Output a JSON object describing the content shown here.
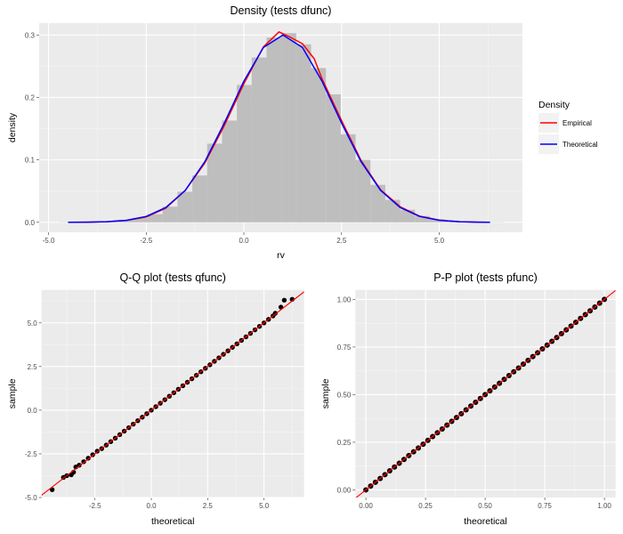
{
  "colors": {
    "panel": "#ebebeb",
    "grid": "#ffffff",
    "histogram": "#bebebe",
    "empirical": "#ff0000",
    "theoretical": "#0000ff",
    "points": "#000000",
    "reference_line": "#ff0000"
  },
  "chart_data": [
    {
      "type": "bar",
      "title": "Density (tests dfunc)",
      "xlabel": "rv",
      "ylabel": "density",
      "xlim": [
        -5.24,
        7.13
      ],
      "ylim": [
        -0.016,
        0.319
      ],
      "xticks": [
        "-5.0",
        "-2.5",
        "0.0",
        "2.5",
        "5.0"
      ],
      "xtick_values": [
        -5,
        -2.5,
        0,
        2.5,
        5
      ],
      "yticks": [
        "0.0",
        "0.1",
        "0.2",
        "0.3"
      ],
      "ytick_values": [
        0,
        0.1,
        0.2,
        0.3
      ],
      "grid": true,
      "histogram": {
        "bin_edges": [
          -4.74,
          -4.36,
          -3.98,
          -3.6,
          -3.22,
          -2.84,
          -2.46,
          -2.08,
          -1.7,
          -1.32,
          -0.94,
          -0.56,
          -0.18,
          0.2,
          0.58,
          0.96,
          1.34,
          1.72,
          2.1,
          2.48,
          2.86,
          3.24,
          3.62,
          4.0,
          4.38,
          4.76,
          5.14,
          5.52,
          5.9,
          6.28,
          6.66
        ],
        "density": [
          0.0003,
          0.0005,
          0.001,
          0.002,
          0.004,
          0.007,
          0.013,
          0.025,
          0.049,
          0.075,
          0.126,
          0.163,
          0.22,
          0.264,
          0.296,
          0.303,
          0.285,
          0.247,
          0.205,
          0.141,
          0.1,
          0.06,
          0.036,
          0.02,
          0.01,
          0.005,
          0.003,
          0.001,
          0.0007,
          0.0003
        ]
      },
      "legend": {
        "title": "Density",
        "position": "right"
      },
      "series": [
        {
          "name": "Empirical",
          "x": [
            -4.5,
            -4,
            -3.5,
            -3,
            -2.5,
            -2,
            -1.5,
            -1,
            -0.5,
            0,
            0.5,
            0.9,
            1.2,
            1.5,
            1.8,
            2,
            2.5,
            3,
            3.5,
            4,
            4.5,
            5,
            5.5,
            6,
            6.3
          ],
          "y": [
            6e-05,
            0.00026,
            0.001,
            0.003,
            0.0085,
            0.0225,
            0.051,
            0.095,
            0.155,
            0.222,
            0.281,
            0.305,
            0.296,
            0.286,
            0.262,
            0.23,
            0.163,
            0.099,
            0.052,
            0.025,
            0.0098,
            0.0034,
            0.001,
            0.0003,
            0.0001
          ]
        },
        {
          "name": "Theoretical",
          "x": [
            -4.5,
            -4,
            -3.5,
            -3,
            -2.5,
            -2,
            -1.5,
            -1,
            -0.5,
            0,
            0.5,
            1,
            1.5,
            2,
            2.5,
            3,
            3.5,
            4,
            4.5,
            5,
            5.5,
            6,
            6.3
          ],
          "y": [
            6e-05,
            0.00026,
            0.00098,
            0.0033,
            0.0094,
            0.0236,
            0.0511,
            0.097,
            0.159,
            0.226,
            0.28,
            0.3,
            0.28,
            0.226,
            0.159,
            0.097,
            0.0511,
            0.0236,
            0.0094,
            0.0033,
            0.00098,
            0.00026,
            0.0001
          ]
        }
      ]
    },
    {
      "type": "scatter",
      "title": "Q-Q plot (tests qfunc)",
      "xlabel": "theoretical",
      "ylabel": "sample",
      "xlim": [
        -4.87,
        6.78
      ],
      "ylim": [
        -5.0,
        6.89
      ],
      "xticks": [
        "-2.5",
        "0.0",
        "2.5",
        "5.0"
      ],
      "xtick_values": [
        -2.5,
        0,
        2.5,
        5
      ],
      "yticks": [
        "-5.0",
        "-2.5",
        "0.0",
        "2.5",
        "5.0"
      ],
      "ytick_values": [
        -5,
        -2.5,
        0,
        2.5,
        5
      ],
      "grid": true,
      "reference_line": {
        "slope": 1,
        "intercept": 0
      },
      "x": [
        -4.4,
        -3.9,
        -3.75,
        -3.55,
        -3.45,
        -3.35,
        -3.2,
        -3.0,
        -2.8,
        -2.6,
        -2.4,
        -2.2,
        -2.0,
        -1.8,
        -1.6,
        -1.4,
        -1.2,
        -1.0,
        -0.8,
        -0.6,
        -0.4,
        -0.2,
        0.0,
        0.2,
        0.4,
        0.6,
        0.8,
        1.0,
        1.2,
        1.4,
        1.6,
        1.8,
        2.0,
        2.2,
        2.4,
        2.6,
        2.8,
        3.0,
        3.2,
        3.4,
        3.6,
        3.8,
        4.0,
        4.2,
        4.4,
        4.6,
        4.8,
        5.0,
        5.2,
        5.4,
        5.5,
        5.75,
        5.9,
        6.25
      ],
      "y": [
        -4.55,
        -3.85,
        -3.75,
        -3.7,
        -3.55,
        -3.25,
        -3.15,
        -2.95,
        -2.75,
        -2.55,
        -2.35,
        -2.2,
        -2.0,
        -1.8,
        -1.6,
        -1.4,
        -1.2,
        -1.0,
        -0.8,
        -0.6,
        -0.4,
        -0.2,
        0.0,
        0.2,
        0.4,
        0.6,
        0.8,
        1.0,
        1.2,
        1.4,
        1.6,
        1.8,
        2.0,
        2.2,
        2.4,
        2.6,
        2.8,
        3.0,
        3.2,
        3.4,
        3.6,
        3.8,
        4.0,
        4.2,
        4.4,
        4.6,
        4.8,
        5.0,
        5.2,
        5.4,
        5.55,
        5.9,
        6.3,
        6.35
      ]
    },
    {
      "type": "scatter",
      "title": "P-P plot (tests pfunc)",
      "xlabel": "theoretical",
      "ylabel": "sample",
      "xlim": [
        -0.044,
        1.047
      ],
      "ylim": [
        -0.04,
        1.05
      ],
      "xticks": [
        "0.00",
        "0.25",
        "0.50",
        "0.75",
        "1.00"
      ],
      "xtick_values": [
        0,
        0.25,
        0.5,
        0.75,
        1
      ],
      "yticks": [
        "0.00",
        "0.25",
        "0.50",
        "0.75",
        "1.00"
      ],
      "ytick_values": [
        0,
        0.25,
        0.5,
        0.75,
        1
      ],
      "grid": true,
      "reference_line": {
        "slope": 1,
        "intercept": 0
      },
      "x": [
        0,
        0.02,
        0.04,
        0.06,
        0.08,
        0.1,
        0.12,
        0.14,
        0.16,
        0.18,
        0.2,
        0.22,
        0.24,
        0.26,
        0.28,
        0.3,
        0.32,
        0.34,
        0.36,
        0.38,
        0.4,
        0.42,
        0.44,
        0.46,
        0.48,
        0.5,
        0.52,
        0.54,
        0.56,
        0.58,
        0.6,
        0.62,
        0.64,
        0.66,
        0.68,
        0.7,
        0.72,
        0.74,
        0.76,
        0.78,
        0.8,
        0.82,
        0.84,
        0.86,
        0.88,
        0.9,
        0.92,
        0.94,
        0.96,
        0.98,
        1
      ],
      "y": [
        0,
        0.02,
        0.04,
        0.06,
        0.08,
        0.1,
        0.12,
        0.14,
        0.16,
        0.18,
        0.2,
        0.22,
        0.24,
        0.26,
        0.28,
        0.3,
        0.32,
        0.34,
        0.36,
        0.38,
        0.4,
        0.42,
        0.44,
        0.46,
        0.48,
        0.5,
        0.52,
        0.54,
        0.56,
        0.58,
        0.6,
        0.62,
        0.64,
        0.66,
        0.68,
        0.7,
        0.72,
        0.74,
        0.76,
        0.78,
        0.8,
        0.82,
        0.84,
        0.86,
        0.88,
        0.9,
        0.92,
        0.94,
        0.96,
        0.98,
        1
      ]
    }
  ]
}
